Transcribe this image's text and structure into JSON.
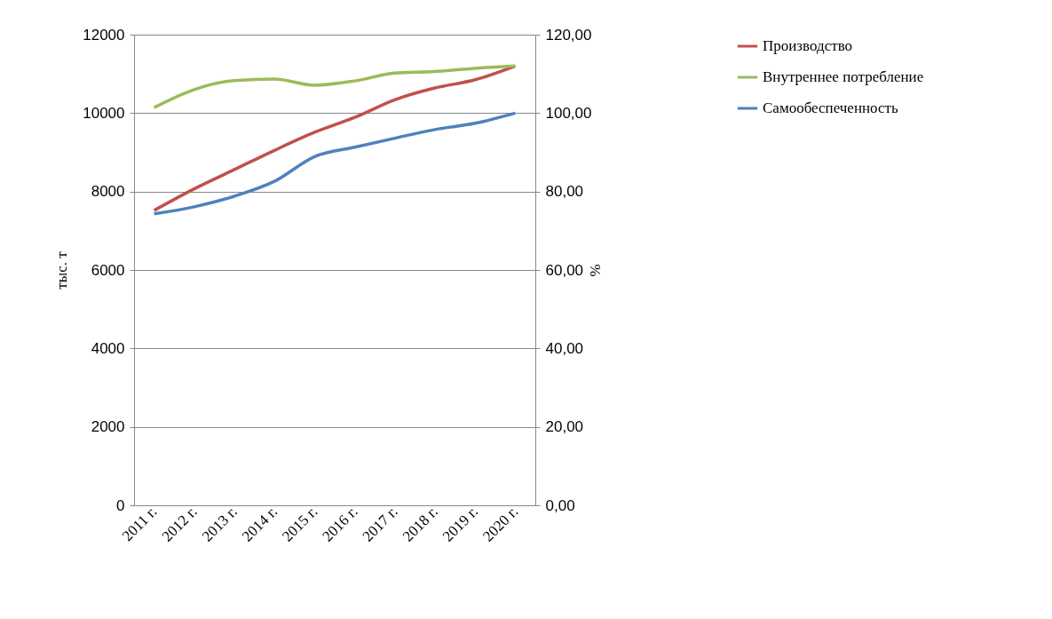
{
  "chart_data": {
    "type": "line",
    "xlabel": null,
    "ylabel": "тыс. т",
    "y2label": "%",
    "categories": [
      "2011 г.",
      "2012 г.",
      "2013 г.",
      "2014 г.",
      "2015 г.",
      "2016 г.",
      "2017 г.",
      "2018 г.",
      "2019 г.",
      "2020 г."
    ],
    "series": [
      {
        "name": "Производство",
        "color": "#c0504d",
        "values": [
          7520,
          8070,
          8560,
          9050,
          9510,
          9890,
          10340,
          10640,
          10850,
          11200
        ]
      },
      {
        "name": "Внутреннее потребление",
        "color": "#9bbb59",
        "values": [
          10140,
          10600,
          10830,
          10870,
          10710,
          10820,
          11020,
          11060,
          11140,
          11200
        ]
      },
      {
        "name": "Самообеспеченность",
        "color": "#4f81bd",
        "axis": "y2",
        "values": [
          74.3,
          76.1,
          78.8,
          82.6,
          88.9,
          91.3,
          93.6,
          95.8,
          97.4,
          100
        ]
      }
    ],
    "ylim": [
      0,
      12000
    ],
    "yticks": [
      0,
      2000,
      4000,
      6000,
      8000,
      10000,
      12000
    ],
    "y2lim": [
      0,
      120
    ],
    "y2ticks": [
      {
        "value": 0,
        "label": "0,00"
      },
      {
        "value": 20,
        "label": "20,00"
      },
      {
        "value": 40,
        "label": "40,00"
      },
      {
        "value": 60,
        "label": "60,00"
      },
      {
        "value": 80,
        "label": "80,00"
      },
      {
        "value": 100,
        "label": "100,00"
      },
      {
        "value": 120,
        "label": "120,00"
      }
    ],
    "grid": "y",
    "legend": "right",
    "marker": "none",
    "line_style": "solid"
  }
}
